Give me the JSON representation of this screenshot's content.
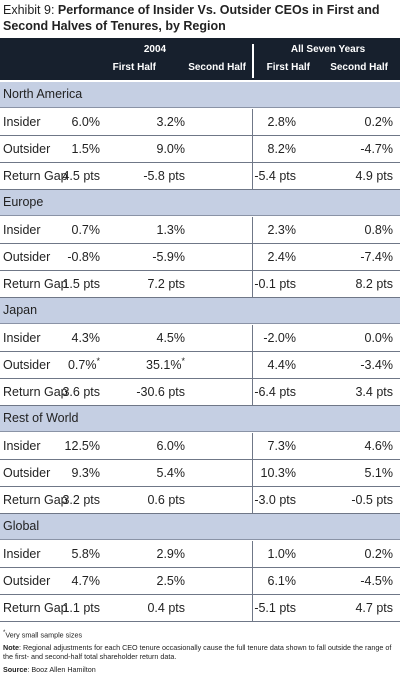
{
  "title": {
    "prefix": "Exhibit 9: ",
    "main": "Performance of Insider Vs. Outsider CEOs in First and Second Halves of Tenures, by Region"
  },
  "header": {
    "group1": "2004",
    "group2": "All Seven Years",
    "col1": "First Half",
    "col2": "Second Half",
    "col3": "First Half",
    "col4": "Second Half"
  },
  "regions": [
    {
      "name": "North America",
      "rows": [
        {
          "label": "Insider",
          "values": [
            "6.0%",
            "3.2%",
            "2.8%",
            "0.2%"
          ],
          "marks": [
            "",
            "",
            "",
            ""
          ]
        },
        {
          "label": "Outsider",
          "values": [
            "1.5%",
            "9.0%",
            "8.2%",
            "-4.7%"
          ],
          "marks": [
            "",
            "",
            "",
            ""
          ]
        },
        {
          "label": "Return Gap",
          "values": [
            "4.5 pts",
            "-5.8 pts",
            "-5.4 pts",
            "4.9 pts"
          ],
          "marks": [
            "",
            "",
            "",
            ""
          ]
        }
      ]
    },
    {
      "name": "Europe",
      "rows": [
        {
          "label": "Insider",
          "values": [
            "0.7%",
            "1.3%",
            "2.3%",
            "0.8%"
          ],
          "marks": [
            "",
            "",
            "",
            ""
          ]
        },
        {
          "label": "Outsider",
          "values": [
            "-0.8%",
            "-5.9%",
            "2.4%",
            "-7.4%"
          ],
          "marks": [
            "",
            "",
            "",
            ""
          ]
        },
        {
          "label": "Return Gap",
          "values": [
            "1.5 pts",
            "7.2 pts",
            "-0.1 pts",
            "8.2 pts"
          ],
          "marks": [
            "",
            "",
            "",
            ""
          ]
        }
      ]
    },
    {
      "name": "Japan",
      "rows": [
        {
          "label": "Insider",
          "values": [
            "4.3%",
            "4.5%",
            "-2.0%",
            "0.0%"
          ],
          "marks": [
            "",
            "",
            "",
            ""
          ]
        },
        {
          "label": "Outsider",
          "values": [
            "0.7%",
            "35.1%",
            "4.4%",
            "-3.4%"
          ],
          "marks": [
            "*",
            "*",
            "",
            ""
          ]
        },
        {
          "label": "Return Gap",
          "values": [
            "3.6 pts",
            "-30.6 pts",
            "-6.4 pts",
            "3.4 pts"
          ],
          "marks": [
            "",
            "",
            "",
            ""
          ]
        }
      ]
    },
    {
      "name": "Rest of World",
      "rows": [
        {
          "label": "Insider",
          "values": [
            "12.5%",
            "6.0%",
            "7.3%",
            "4.6%"
          ],
          "marks": [
            "",
            "",
            "",
            ""
          ]
        },
        {
          "label": "Outsider",
          "values": [
            "9.3%",
            "5.4%",
            "10.3%",
            "5.1%"
          ],
          "marks": [
            "",
            "",
            "",
            ""
          ]
        },
        {
          "label": "Return Gap",
          "values": [
            "3.2 pts",
            "0.6 pts",
            "-3.0 pts",
            "-0.5 pts"
          ],
          "marks": [
            "",
            "",
            "",
            ""
          ]
        }
      ]
    },
    {
      "name": "Global",
      "rows": [
        {
          "label": "Insider",
          "values": [
            "5.8%",
            "2.9%",
            "1.0%",
            "0.2%"
          ],
          "marks": [
            "",
            "",
            "",
            ""
          ]
        },
        {
          "label": "Outsider",
          "values": [
            "4.7%",
            "2.5%",
            "6.1%",
            "-4.5%"
          ],
          "marks": [
            "",
            "",
            "",
            ""
          ]
        },
        {
          "label": "Return Gap",
          "values": [
            "1.1 pts",
            "0.4 pts",
            "-5.1 pts",
            "4.7 pts"
          ],
          "marks": [
            "",
            "",
            "",
            ""
          ]
        }
      ]
    }
  ],
  "footnotes": {
    "asterisk_mark": "*",
    "asterisk_text": "Very small sample sizes",
    "note_label": "Note",
    "note_text": ": Regional adjustments for each CEO tenure occasionally cause the full tenure data shown to fall outside the range of the first- and second-half total shareholder return data.",
    "source_label": "Source",
    "source_text": ": Booz Allen Hamilton"
  },
  "colors": {
    "header_bg": "#17202d",
    "region_bg": "#c5cfe3",
    "rule": "#6f7787"
  }
}
